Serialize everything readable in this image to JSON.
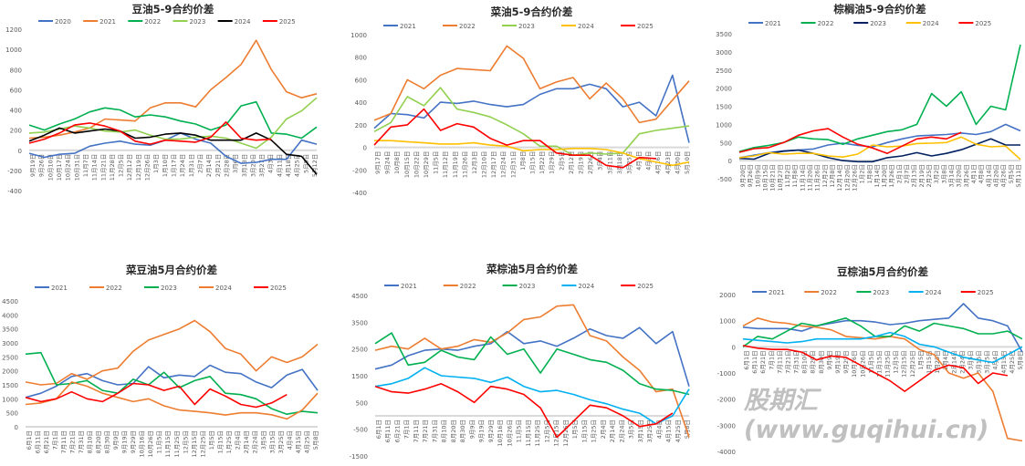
{
  "chart_data": [
    {
      "type": "line",
      "title": "豆油5-9合约价差",
      "ylim": [
        -400,
        1200
      ],
      "ystep": 200,
      "xlabels": [
        "9月19日",
        "9月26日",
        "10月10日",
        "10月17日",
        "10月24日",
        "10月31日",
        "11月7日",
        "11月14日",
        "11月21日",
        "11月28日",
        "12月5日",
        "12月12日",
        "12月19日",
        "12月26日",
        "1月3日",
        "1月10日",
        "1月17日",
        "1月24日",
        "1月31日",
        "2月7日",
        "2月14日",
        "2月21日",
        "2月28日",
        "3月6日",
        "3月13日",
        "3月20日",
        "3月27日",
        "4月3日",
        "4月11日",
        "4月18日",
        "4月25日",
        "5月5日",
        "5月12日"
      ],
      "series": [
        {
          "name": "2020",
          "color": "#4472C4",
          "values": [
            -30,
            -70,
            -40,
            -30,
            40,
            70,
            90,
            60,
            50,
            100,
            170,
            110,
            70,
            -60,
            -130,
            -120,
            -90,
            -90,
            100,
            60
          ]
        },
        {
          "name": "2021",
          "color": "#ED7D31",
          "values": [
            120,
            130,
            150,
            180,
            220,
            310,
            300,
            290,
            420,
            470,
            470,
            430,
            600,
            720,
            850,
            1090,
            800,
            580,
            520,
            560
          ]
        },
        {
          "name": "2022",
          "color": "#00B050",
          "values": [
            250,
            200,
            260,
            310,
            380,
            420,
            400,
            330,
            350,
            330,
            290,
            260,
            200,
            250,
            440,
            480,
            170,
            160,
            120,
            230
          ]
        },
        {
          "name": "2023",
          "color": "#92D050",
          "values": [
            170,
            180,
            210,
            240,
            220,
            190,
            180,
            200,
            150,
            110,
            110,
            130,
            140,
            120,
            70,
            20,
            130,
            310,
            390,
            520
          ]
        },
        {
          "name": "2024",
          "color": "#000000",
          "values": [
            90,
            150,
            220,
            170,
            190,
            210,
            190,
            120,
            130,
            160,
            170,
            150,
            100,
            100,
            100,
            170,
            100,
            -40,
            -60,
            -240
          ]
        },
        {
          "name": "2025",
          "color": "#FF0000",
          "values": [
            70,
            110,
            170,
            250,
            270,
            240,
            190,
            90,
            60,
            100,
            90,
            80,
            130,
            280,
            120,
            100,
            110,
            null,
            null,
            null
          ]
        }
      ]
    },
    {
      "type": "line",
      "title": "菜油5-9合约价差",
      "ylim": [
        -400,
        1000
      ],
      "ystep": 200,
      "xlabels": [
        "9月17日",
        "9月24日",
        "10月8日",
        "10月15日",
        "10月22日",
        "10月29日",
        "11月5日",
        "11月12日",
        "11月19日",
        "11月26日",
        "12月3日",
        "12月10日",
        "12月17日",
        "12月24日",
        "12月31日",
        "1月8日",
        "1月15日",
        "1月22日",
        "1月29日",
        "2月5日",
        "2月12日",
        "2月19日",
        "2月26日",
        "3月4日",
        "3月11日",
        "3月18日",
        "3月25日",
        "4月1日",
        "4月9日",
        "4月16日",
        "4月23日",
        "4月30日",
        "5月10日"
      ],
      "series": [
        {
          "name": "2021",
          "color": "#4472C4",
          "values": [
            170,
            300,
            290,
            260,
            400,
            390,
            410,
            380,
            360,
            380,
            470,
            520,
            520,
            560,
            520,
            360,
            400,
            280,
            640,
            40
          ]
        },
        {
          "name": "2022",
          "color": "#ED7D31",
          "values": [
            240,
            300,
            600,
            520,
            640,
            700,
            690,
            680,
            900,
            790,
            520,
            580,
            620,
            430,
            570,
            430,
            220,
            250,
            420,
            590
          ]
        },
        {
          "name": "2023",
          "color": "#92D050",
          "values": [
            140,
            220,
            450,
            370,
            530,
            340,
            310,
            270,
            200,
            120,
            10,
            10,
            -70,
            -50,
            -60,
            -50,
            120,
            150,
            170,
            190
          ]
        },
        {
          "name": "2024",
          "color": "#FFC000",
          "values": [
            60,
            60,
            50,
            40,
            30,
            30,
            40,
            20,
            10,
            -30,
            -20,
            -20,
            -10,
            -10,
            -20,
            -50,
            -100,
            -130,
            -160,
            -130
          ]
        },
        {
          "name": "2025",
          "color": "#FF0000",
          "values": [
            20,
            180,
            200,
            340,
            150,
            210,
            180,
            80,
            20,
            60,
            60,
            -50,
            -70,
            -70,
            -160,
            -180,
            -90,
            -100,
            null,
            null
          ]
        }
      ]
    },
    {
      "type": "line",
      "title": "棕榈油5-9合约价差",
      "ylim": [
        -500,
        3500
      ],
      "ystep": 500,
      "xlabels": [
        "9月20日",
        "9月26日",
        "10月9日",
        "10月15日",
        "10月21日",
        "10月27日",
        "11月2日",
        "11月8日",
        "11月14日",
        "11月20日",
        "11月26日",
        "12月2日",
        "12月8日",
        "12月14日",
        "12月20日",
        "12月26日",
        "1月2日",
        "1月8日",
        "1月14日",
        "1月20日",
        "1月26日",
        "2月1日",
        "2月7日",
        "2月13日",
        "2月19日",
        "2月25日",
        "3月2日",
        "3月8日",
        "3月14日",
        "3月20日",
        "3月26日",
        "4月1日",
        "4月8日",
        "4月14日",
        "4月20日",
        "4月26日",
        "5月5日",
        "5月11日"
      ],
      "series": [
        {
          "name": "2021",
          "color": "#4472C4",
          "values": [
            80,
            150,
            220,
            270,
            290,
            320,
            430,
            480,
            420,
            380,
            500,
            600,
            680,
            700,
            720,
            760,
            720,
            800,
            1000,
            820
          ]
        },
        {
          "name": "2022",
          "color": "#00B050",
          "values": [
            250,
            360,
            420,
            500,
            650,
            600,
            580,
            450,
            600,
            700,
            800,
            850,
            1000,
            1850,
            1500,
            1900,
            1000,
            1500,
            1400,
            3200
          ]
        },
        {
          "name": "2023",
          "color": "#002060",
          "values": [
            60,
            40,
            200,
            260,
            290,
            200,
            80,
            0,
            -30,
            -30,
            80,
            130,
            220,
            130,
            200,
            300,
            450,
            600,
            430,
            430
          ]
        },
        {
          "name": "2024",
          "color": "#FFC000",
          "values": [
            80,
            130,
            220,
            180,
            200,
            200,
            130,
            100,
            180,
            430,
            380,
            400,
            470,
            480,
            500,
            650,
            450,
            380,
            400,
            30
          ]
        },
        {
          "name": "2025",
          "color": "#FF0000",
          "values": [
            230,
            330,
            360,
            500,
            700,
            820,
            880,
            650,
            450,
            350,
            200,
            400,
            600,
            650,
            600,
            780,
            null,
            null,
            null,
            null
          ]
        }
      ]
    },
    {
      "type": "line",
      "title": "菜豆油5月合约价差",
      "ylim": [
        0,
        4500
      ],
      "ystep": 500,
      "xlabels": [
        "6月1日",
        "6月11日",
        "6月21日",
        "7月1日",
        "7月11日",
        "7月21日",
        "7月31日",
        "8月10日",
        "8月20日",
        "8月30日",
        "9月9日",
        "9月19日",
        "9月29日",
        "10月16日",
        "10月26日",
        "11月5日",
        "11月15日",
        "11月25日",
        "12月5日",
        "12月15日",
        "12月25日",
        "1月5日",
        "1月15日",
        "1月25日",
        "2月4日",
        "2月14日",
        "2月24日",
        "3月5日",
        "3月15日",
        "3月25日",
        "4月4日",
        "4月15日",
        "4月25日",
        "5月8日"
      ],
      "series": [
        {
          "name": "2021",
          "color": "#4472C4",
          "values": [
            1050,
            1200,
            1450,
            1800,
            1900,
            1650,
            1500,
            1550,
            2150,
            1750,
            1850,
            1800,
            2200,
            1950,
            1900,
            1600,
            1400,
            1850,
            2050,
            1300
          ]
        },
        {
          "name": "2022",
          "color": "#ED7D31",
          "values": [
            1600,
            1500,
            1550,
            1900,
            1700,
            2000,
            2100,
            2700,
            3100,
            3300,
            3500,
            3800,
            3400,
            2800,
            2600,
            2000,
            2500,
            2300,
            2500,
            2950
          ]
        },
        {
          "name": "2023",
          "color": "#00B050",
          "values": [
            2600,
            2650,
            1500,
            1550,
            1650,
            1300,
            1200,
            1700,
            1500,
            1950,
            1400,
            1650,
            1800,
            1200,
            1150,
            1000,
            650,
            450,
            550,
            500
          ]
        },
        {
          "name": "2024",
          "color": "#ED7D31",
          "values": [
            800,
            850,
            1000,
            1600,
            1450,
            1200,
            1050,
            900,
            1000,
            750,
            600,
            550,
            500,
            420,
            500,
            500,
            430,
            280,
            600,
            1200
          ]
        },
        {
          "name": "2025",
          "color": "#FF0000",
          "values": [
            1050,
            900,
            1000,
            1250,
            1000,
            900,
            1200,
            1550,
            1500,
            1300,
            1450,
            800,
            1350,
            1100,
            800,
            700,
            850,
            1150,
            null,
            null
          ]
        }
      ]
    },
    {
      "type": "line",
      "title": "菜棕油5月合约价差",
      "ylim": [
        -1500,
        4500
      ],
      "ystep": 1000,
      "xlabels": [
        "6月1日",
        "6月11日",
        "6月21日",
        "7月1日",
        "7月11日",
        "7月21日",
        "7月31日",
        "8月10日",
        "8月20日",
        "8月30日",
        "9月9日",
        "9月19日",
        "9月29日",
        "10月16日",
        "10月26日",
        "11月5日",
        "11月15日",
        "11月25日",
        "12月5日",
        "12月15日",
        "12月25日",
        "1月5日",
        "1月15日",
        "1月25日",
        "2月4日",
        "2月14日",
        "2月24日",
        "3月5日",
        "3月15日",
        "3月25日",
        "4月4日",
        "4月15日",
        "4月25日",
        "5月8日"
      ],
      "series": [
        {
          "name": "2021",
          "color": "#4472C4",
          "values": [
            1750,
            1900,
            2250,
            2450,
            2500,
            2450,
            2600,
            2700,
            3150,
            2700,
            2800,
            2600,
            2900,
            3250,
            3000,
            2900,
            3300,
            2700,
            3150,
            1100
          ]
        },
        {
          "name": "2022",
          "color": "#ED7D31",
          "values": [
            2450,
            2600,
            2500,
            2900,
            2500,
            2600,
            2850,
            2750,
            3100,
            3600,
            3700,
            4100,
            4150,
            3000,
            2800,
            2200,
            1700,
            900,
            1000,
            -800
          ]
        },
        {
          "name": "2023",
          "color": "#00B050",
          "values": [
            2700,
            3100,
            1900,
            2000,
            2450,
            2200,
            2100,
            2950,
            2300,
            2500,
            1600,
            2500,
            2300,
            2100,
            2000,
            1700,
            1200,
            1000,
            950,
            800
          ]
        },
        {
          "name": "2024",
          "color": "#00B0F0",
          "values": [
            1100,
            1200,
            1400,
            1800,
            1500,
            1450,
            1400,
            1250,
            1450,
            1100,
            900,
            950,
            800,
            600,
            450,
            250,
            100,
            -300,
            0,
            1000
          ]
        },
        {
          "name": "2025",
          "color": "#FF0000",
          "values": [
            1100,
            900,
            850,
            1000,
            1200,
            900,
            500,
            1100,
            1000,
            800,
            300,
            -800,
            -200,
            400,
            300,
            0,
            -400,
            -300,
            100,
            null
          ]
        }
      ]
    },
    {
      "type": "line",
      "title": "豆棕油5月合约价差",
      "ylim": [
        -4000,
        2000
      ],
      "ystep": 1000,
      "xlabels": [
        "6月1日",
        "6月11日",
        "6月21日",
        "7月1日",
        "7月11日",
        "7月21日",
        "7月31日",
        "8月10日",
        "8月20日",
        "8月30日",
        "9月9日",
        "9月19日",
        "9月29日",
        "10月16日",
        "10月26日",
        "11月5日",
        "11月15日",
        "11月25日",
        "12月5日",
        "12月15日",
        "12月25日",
        "1月5日",
        "1月15日",
        "1月25日",
        "2月4日",
        "2月14日",
        "2月24日",
        "3月5日",
        "3月15日",
        "3月25日",
        "4月4日",
        "4月15日",
        "4月25日",
        "5月8日"
      ],
      "series": [
        {
          "name": "2021",
          "color": "#4472C4",
          "values": [
            750,
            700,
            700,
            700,
            600,
            800,
            900,
            1000,
            1000,
            950,
            850,
            900,
            1000,
            1050,
            1100,
            1650,
            1100,
            1000,
            800,
            -200
          ]
        },
        {
          "name": "2022",
          "color": "#ED7D31",
          "values": [
            800,
            1100,
            950,
            900,
            800,
            750,
            650,
            400,
            350,
            300,
            400,
            300,
            -100,
            -300,
            -1000,
            -1200,
            -1000,
            -1700,
            -3500,
            -3600
          ]
        },
        {
          "name": "2023",
          "color": "#00B050",
          "values": [
            0,
            400,
            300,
            600,
            900,
            800,
            950,
            1100,
            800,
            400,
            400,
            800,
            600,
            900,
            800,
            700,
            500,
            500,
            600,
            300
          ]
        },
        {
          "name": "2024",
          "color": "#00B0F0",
          "values": [
            300,
            250,
            200,
            150,
            200,
            300,
            300,
            300,
            300,
            400,
            550,
            400,
            100,
            0,
            -200,
            -400,
            -500,
            -600,
            -300,
            0
          ]
        },
        {
          "name": "2025",
          "color": "#FF0000",
          "values": [
            50,
            -50,
            -100,
            -100,
            -200,
            -500,
            -350,
            -400,
            -700,
            -1000,
            -1300,
            -1700,
            -1300,
            -900,
            -700,
            -800,
            -1400,
            -1000,
            -1100,
            null
          ]
        }
      ]
    }
  ],
  "watermark": "股期汇(www.guqihui.cn)"
}
